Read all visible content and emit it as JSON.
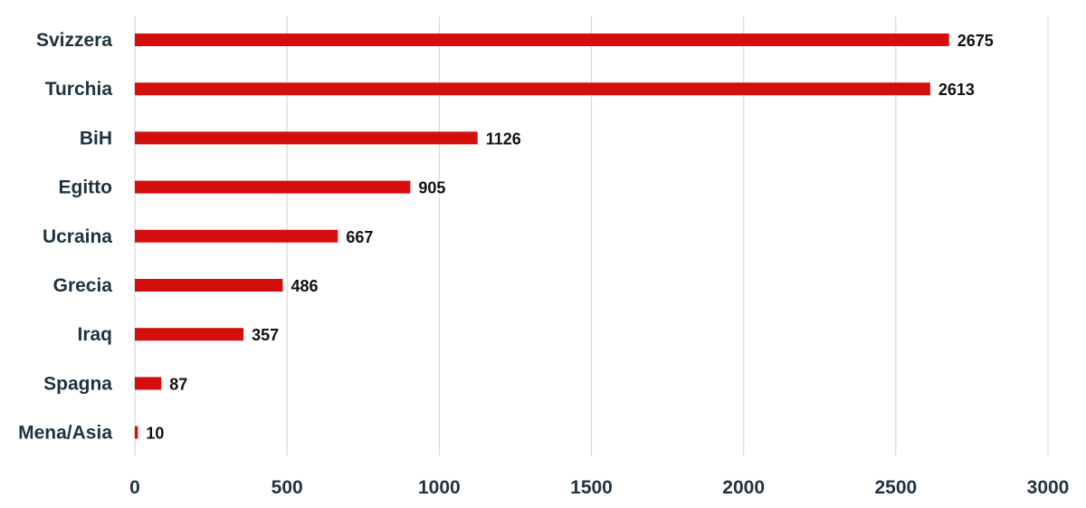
{
  "chart_data": {
    "type": "bar",
    "orientation": "horizontal",
    "categories": [
      "Svizzera",
      "Turchia",
      "BiH",
      "Egitto",
      "Ucraina",
      "Grecia",
      "Iraq",
      "Spagna",
      "Mena/Asia"
    ],
    "values": [
      2675,
      2613,
      1126,
      905,
      667,
      486,
      357,
      87,
      10
    ],
    "xlim": [
      0,
      3000
    ],
    "xticks": [
      0,
      500,
      1000,
      1500,
      2000,
      2500,
      3000
    ],
    "grid": "vertical",
    "legend": "none",
    "bar_color": "#d40d0d"
  }
}
